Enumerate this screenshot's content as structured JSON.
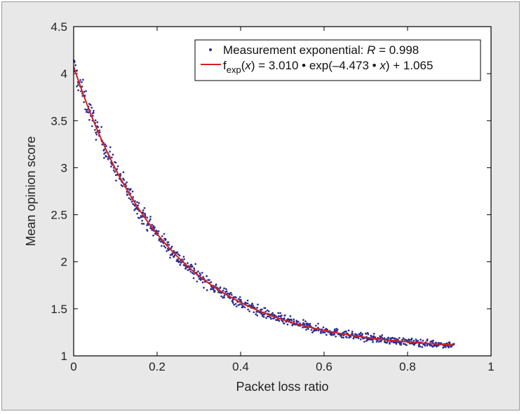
{
  "chart_data": {
    "type": "scatter",
    "xlabel": "Packet loss ratio",
    "ylabel": "Mean opinion score",
    "xlim": [
      0,
      1
    ],
    "ylim": [
      1,
      4.5
    ],
    "xticks": [
      "0",
      "0.2",
      "0.4",
      "0.6",
      "0.8",
      "1"
    ],
    "xtick_values": [
      0,
      0.2,
      0.4,
      0.6,
      0.8,
      1
    ],
    "yticks": [
      "1",
      "1.5",
      "2",
      "2.5",
      "3",
      "3.5",
      "4",
      "4.5"
    ],
    "ytick_values": [
      1,
      1.5,
      2,
      2.5,
      3,
      3.5,
      4,
      4.5
    ],
    "legend_position": "top-right",
    "grid": false,
    "series": [
      {
        "name": "Measurement exponential: R = 0.998",
        "kind": "scatter",
        "color": "#2e2e8f",
        "x_range": [
          0,
          0.91
        ],
        "points_approx": 900
      },
      {
        "name": "fexp(x) = 3.010 • exp(–4.473 • x) + 1.065",
        "kind": "line",
        "color": "#d42020",
        "a": 3.01,
        "b": -4.473,
        "c": 1.065,
        "x_range": [
          0,
          0.91
        ]
      }
    ],
    "legend": {
      "scatter_text": "Measurement exponential: ",
      "scatter_r_label": "R",
      "scatter_r_value": " = 0.998",
      "fit_f": "f",
      "fit_sub": "exp",
      "fit_x": "x",
      "fit_mid": ") = 3.010 • exp(–4.473 • ",
      "fit_end": ") + 1.065"
    }
  }
}
